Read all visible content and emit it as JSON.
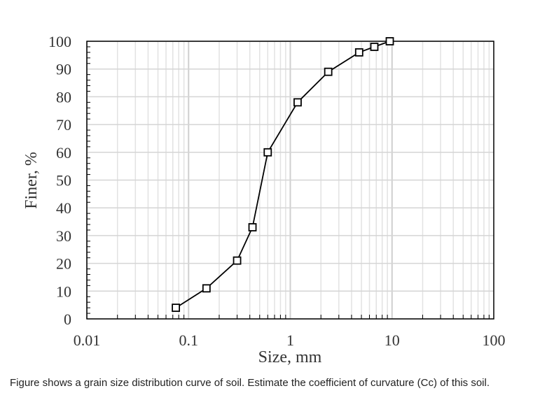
{
  "chart_data": {
    "type": "scatter",
    "xscale": "log",
    "xlim": [
      0.01,
      100
    ],
    "ylim": [
      0,
      100
    ],
    "xlabel": "Size, mm",
    "ylabel": "Finer, %",
    "xticks": [
      "0.01",
      "0.1",
      "1",
      "10",
      "100"
    ],
    "yticks": [
      "0",
      "10",
      "20",
      "30",
      "40",
      "50",
      "60",
      "70",
      "80",
      "90",
      "100"
    ],
    "grid": true,
    "marker": "square",
    "series": [
      {
        "x": [
          0.075,
          0.15,
          0.3,
          0.425,
          0.6,
          1.18,
          2.36,
          4.75,
          6.7,
          9.5
        ],
        "y": [
          4,
          11,
          21,
          33,
          60,
          78,
          89,
          96,
          98,
          100
        ]
      }
    ],
    "line_color": "#000000",
    "grid_color": "#d9d9d9"
  },
  "caption": "Figure shows a grain size distribution curve of soil. Estimate the coefficient of curvature (Cc) of this soil."
}
